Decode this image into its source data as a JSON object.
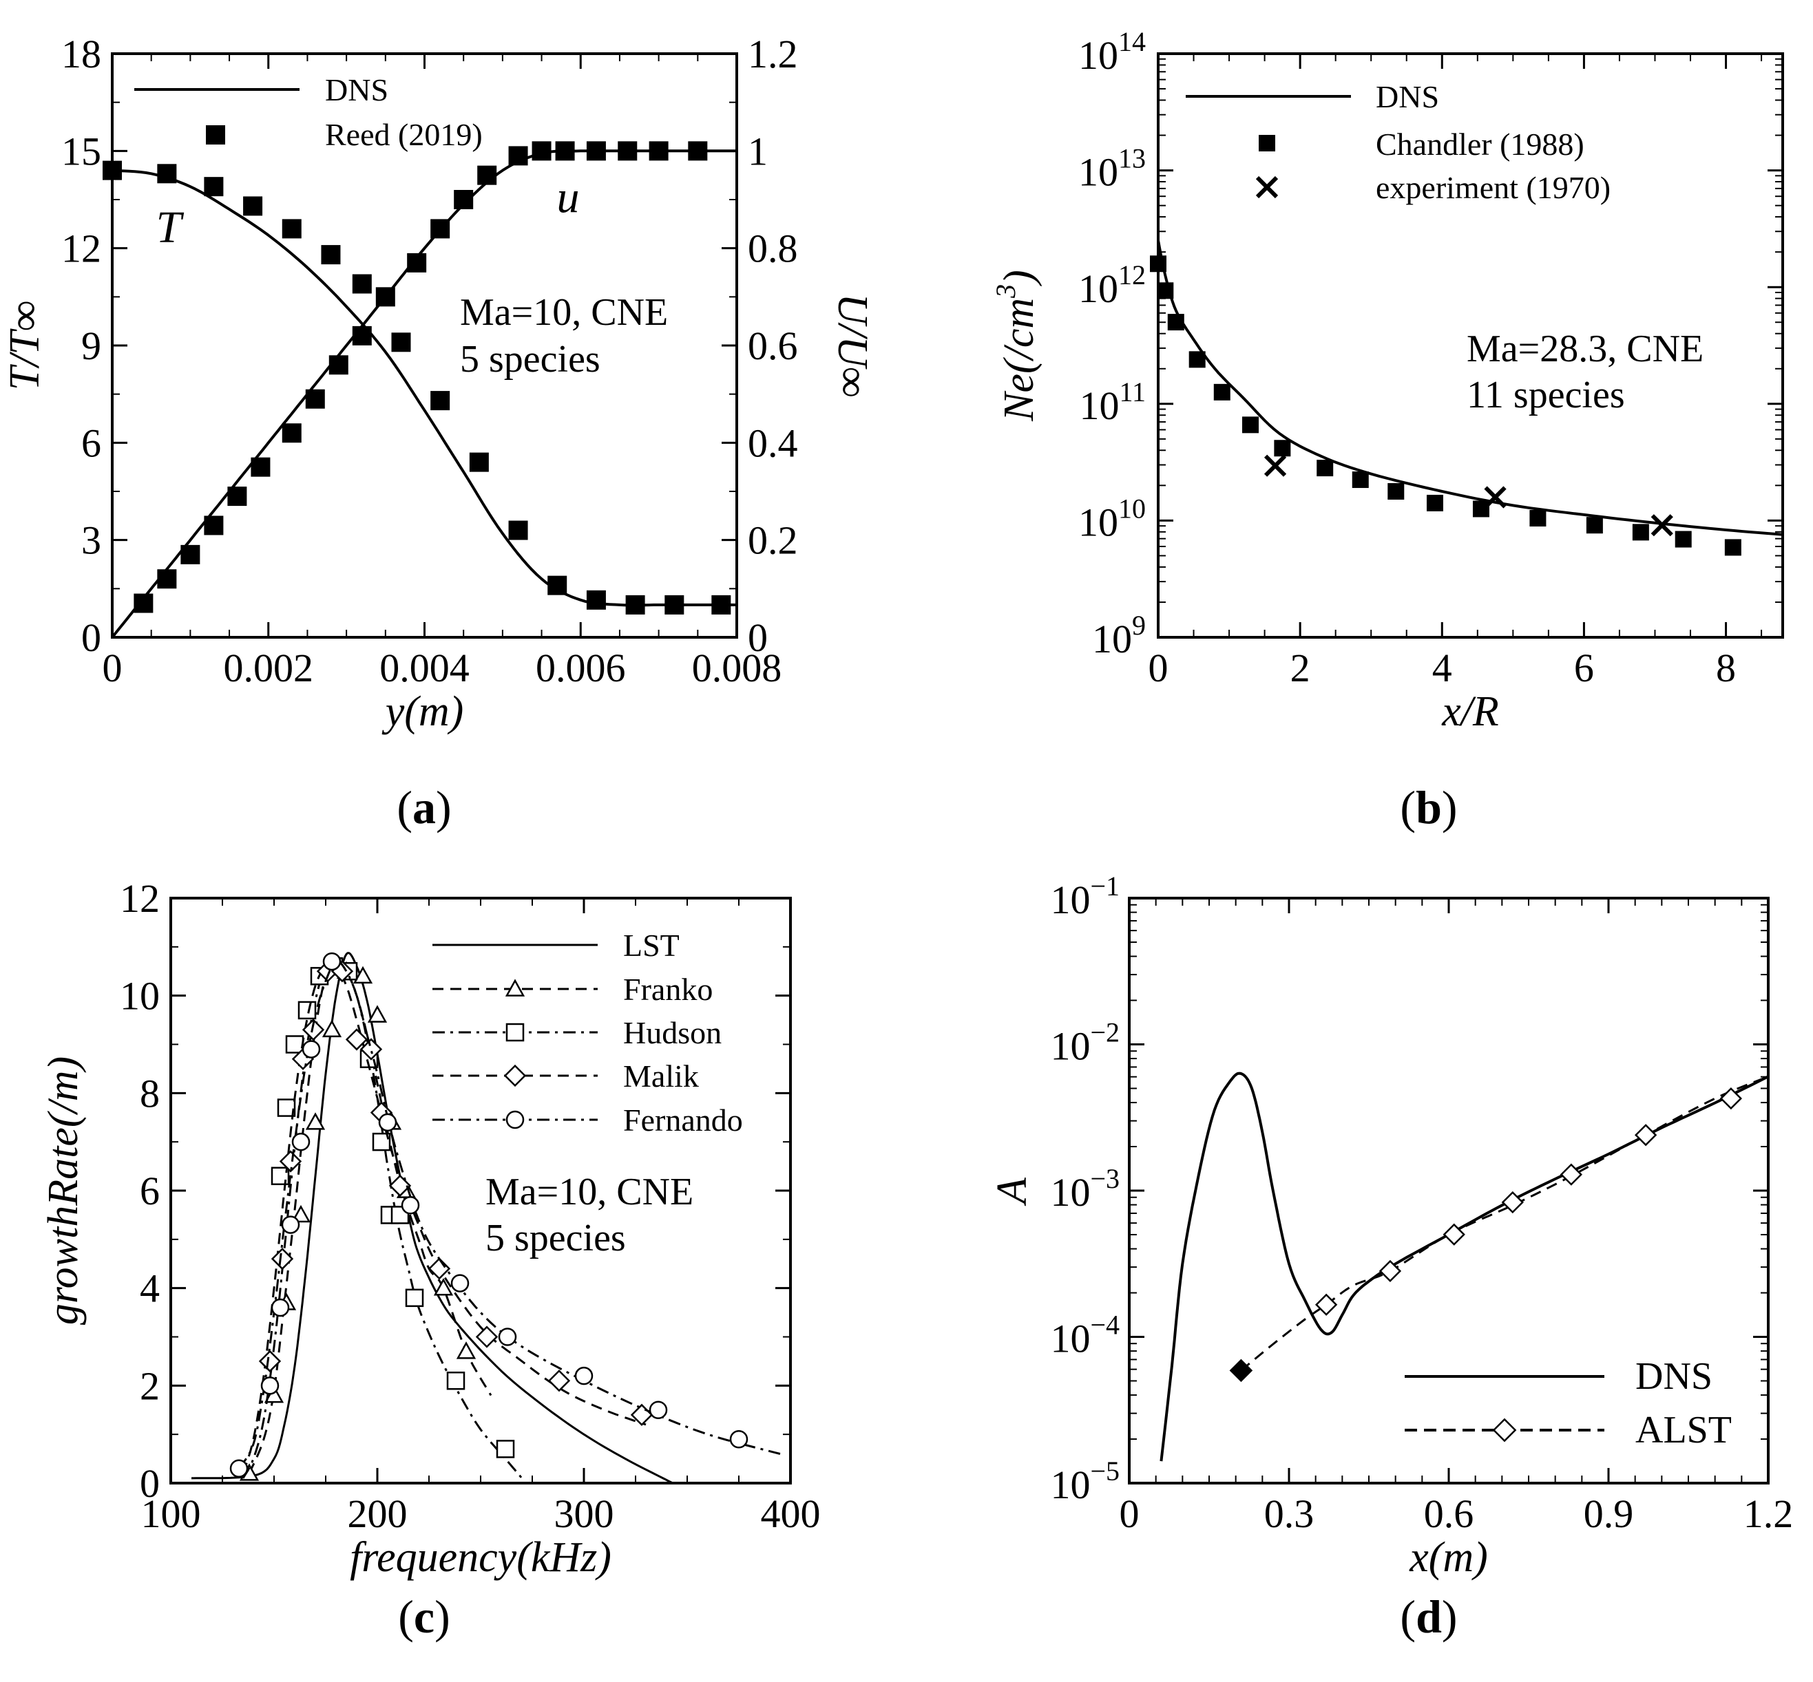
{
  "chart_data": [
    {
      "type": "line",
      "caption": "a",
      "xlabel": "y(m)",
      "ylabel": "T/T∞",
      "ylabel_right": "U/U∞",
      "xlim": [
        0,
        0.008
      ],
      "ylim": [
        0,
        18
      ],
      "ylim_right": [
        0,
        1.2
      ],
      "xticks": [
        "0",
        "0.002",
        "0.004",
        "0.006",
        "0.008"
      ],
      "yticks": [
        "0",
        "3",
        "6",
        "9",
        "12",
        "15",
        "18"
      ],
      "yticks_right": [
        "0",
        "0.2",
        "0.4",
        "0.6",
        "0.8",
        "1",
        "1.2"
      ],
      "legend": [
        "DNS",
        "Reed (2019)"
      ],
      "annotation": [
        "Ma=10, CNE",
        "5 species"
      ],
      "curve_labels": [
        "T",
        "u"
      ],
      "series": [
        {
          "name": "DNS T",
          "style": "line",
          "axis": "left",
          "x": [
            0,
            0.0005,
            0.001,
            0.0015,
            0.002,
            0.0025,
            0.003,
            0.0035,
            0.004,
            0.0045,
            0.005,
            0.0055,
            0.006,
            0.0065,
            0.007,
            0.0075,
            0.008
          ],
          "y": [
            14.4,
            14.3,
            13.9,
            13.2,
            12.4,
            11.4,
            10.2,
            8.8,
            7.0,
            5.1,
            3.2,
            1.8,
            1.15,
            1.0,
            1.0,
            1.0,
            1.0
          ]
        },
        {
          "name": "DNS u",
          "style": "line",
          "axis": "right",
          "x": [
            0,
            0.0005,
            0.001,
            0.0015,
            0.002,
            0.0025,
            0.003,
            0.0035,
            0.004,
            0.0045,
            0.005,
            0.0055,
            0.006,
            0.0065,
            0.007,
            0.0075,
            0.008
          ],
          "y": [
            0,
            0.1,
            0.2,
            0.3,
            0.4,
            0.5,
            0.6,
            0.7,
            0.8,
            0.89,
            0.96,
            0.995,
            1.0,
            1.0,
            1.0,
            1.0,
            1.0
          ]
        },
        {
          "name": "Reed (2019) T",
          "style": "square",
          "axis": "left",
          "x": [
            0.0,
            0.0007,
            0.0013,
            0.0018,
            0.0023,
            0.0028,
            0.0032,
            0.0037,
            0.0042,
            0.0047,
            0.0052,
            0.0057,
            0.0062,
            0.0067,
            0.0072,
            0.0078
          ],
          "y": [
            14.4,
            14.3,
            13.9,
            13.3,
            12.6,
            11.8,
            10.9,
            9.1,
            7.3,
            5.4,
            3.3,
            1.6,
            1.15,
            1.0,
            1.0,
            1.0
          ]
        },
        {
          "name": "Reed (2019) u",
          "style": "square",
          "axis": "right",
          "x": [
            0.0004,
            0.0007,
            0.001,
            0.0013,
            0.0016,
            0.0019,
            0.0023,
            0.0026,
            0.0029,
            0.0032,
            0.0035,
            0.0039,
            0.0042,
            0.0045,
            0.0048,
            0.0052,
            0.0055,
            0.0058,
            0.0062,
            0.0066,
            0.007,
            0.0075
          ],
          "y": [
            0.07,
            0.12,
            0.17,
            0.23,
            0.29,
            0.35,
            0.42,
            0.49,
            0.56,
            0.62,
            0.7,
            0.77,
            0.84,
            0.9,
            0.95,
            0.99,
            1.0,
            1.0,
            1.0,
            1.0,
            1.0,
            1.0
          ]
        }
      ]
    },
    {
      "type": "line",
      "caption": "b",
      "xlabel": "x/R",
      "ylabel": "Ne(/cm3)",
      "yscale": "log",
      "xlim": [
        0,
        8.8
      ],
      "ylim_exponents": [
        9,
        14
      ],
      "xticks": [
        "0",
        "2",
        "4",
        "6",
        "8"
      ],
      "ytick_base": "10",
      "yticks_exp": [
        "9",
        "10",
        "11",
        "12",
        "13",
        "14"
      ],
      "legend": [
        "DNS",
        "Chandler (1988)",
        "experiment (1970)"
      ],
      "annotation": [
        "Ma=28.3, CNE",
        "11 species"
      ],
      "series": [
        {
          "name": "DNS",
          "style": "line",
          "x": [
            0,
            0.1,
            0.25,
            0.5,
            0.8,
            1.2,
            1.7,
            2.3,
            3.0,
            4.0,
            5.0,
            6.0,
            7.0,
            8.0,
            8.8
          ],
          "log10_y": [
            12.4,
            12.1,
            11.8,
            11.55,
            11.3,
            11.05,
            10.75,
            10.55,
            10.4,
            10.25,
            10.13,
            10.05,
            9.98,
            9.92,
            9.88
          ]
        },
        {
          "name": "Chandler (1988)",
          "style": "square",
          "x": [
            0.0,
            0.1,
            0.25,
            0.55,
            0.9,
            1.3,
            1.75,
            2.35,
            2.85,
            3.35,
            3.9,
            4.55,
            5.35,
            6.15,
            6.8,
            7.4,
            8.1
          ],
          "log10_y": [
            12.2,
            11.97,
            11.7,
            11.38,
            11.1,
            10.82,
            10.62,
            10.45,
            10.35,
            10.25,
            10.15,
            10.1,
            10.02,
            9.96,
            9.9,
            9.84,
            9.77
          ]
        },
        {
          "name": "experiment (1970)",
          "style": "x",
          "x": [
            1.65,
            4.75,
            7.1
          ],
          "log10_y": [
            10.47,
            10.2,
            9.96
          ]
        }
      ]
    },
    {
      "type": "line",
      "caption": "c",
      "xlabel": "frequency(kHz)",
      "ylabel": "growthRate(/m)",
      "xlim": [
        100,
        400
      ],
      "ylim": [
        0,
        12
      ],
      "xticks": [
        "100",
        "200",
        "300",
        "400"
      ],
      "yticks": [
        "0",
        "2",
        "4",
        "6",
        "8",
        "10",
        "12"
      ],
      "legend": [
        "LST",
        "Franko",
        "Hudson",
        "Malik",
        "Fernando"
      ],
      "annotation": [
        "Ma=10, CNE",
        "5 species"
      ],
      "series": [
        {
          "name": "LST",
          "style": "solid",
          "x": [
            110,
            140,
            150,
            155,
            160,
            165,
            170,
            175,
            180,
            185,
            190,
            195,
            200,
            205,
            210,
            215,
            220,
            230,
            240,
            260,
            280,
            300,
            320,
            343
          ],
          "y": [
            0.1,
            0.15,
            0.5,
            1.2,
            2.4,
            4.2,
            6.3,
            8.4,
            10.0,
            10.85,
            10.6,
            9.9,
            8.8,
            7.6,
            6.5,
            5.5,
            4.7,
            3.8,
            3.2,
            2.3,
            1.6,
            1.0,
            0.5,
            0.0
          ]
        },
        {
          "name": "Franko",
          "style": "dash",
          "marker": "triangle",
          "x": [
            138,
            145,
            150,
            155,
            160,
            165,
            170,
            175,
            180,
            185,
            190,
            195,
            200,
            205,
            210,
            215,
            220,
            225,
            232,
            243,
            255
          ],
          "y": [
            0.2,
            0.9,
            1.9,
            3.7,
            5.6,
            7.6,
            9.3,
            10.4,
            10.65,
            10.5,
            10.0,
            9.2,
            8.2,
            7.2,
            6.3,
            5.6,
            5.0,
            4.4,
            4.0,
            2.7,
            1.8
          ],
          "marker_x": [
            138,
            150,
            156,
            163,
            170,
            178,
            185,
            193,
            200,
            207,
            214,
            232,
            243
          ],
          "marker_y": [
            0.2,
            1.8,
            3.7,
            5.5,
            7.4,
            9.3,
            10.5,
            10.4,
            9.6,
            7.4,
            6.0,
            4.0,
            2.7
          ]
        },
        {
          "name": "Hudson",
          "style": "dashdot",
          "marker": "square",
          "x": [
            135,
            140,
            145,
            150,
            155,
            160,
            165,
            170,
            175,
            180,
            185,
            190,
            195,
            200,
            205,
            210,
            215,
            220,
            230,
            240,
            250,
            262,
            270
          ],
          "y": [
            0.1,
            0.5,
            1.3,
            2.8,
            4.8,
            6.9,
            8.7,
            9.9,
            10.6,
            10.7,
            10.5,
            10.0,
            9.1,
            7.9,
            6.5,
            5.3,
            4.4,
            3.6,
            2.6,
            1.8,
            1.1,
            0.5,
            0.1
          ],
          "marker_x": [
            153,
            156,
            160,
            166,
            172,
            179,
            186,
            196,
            202,
            206,
            211,
            218,
            238,
            262
          ],
          "marker_y": [
            6.3,
            7.7,
            9.0,
            9.7,
            10.4,
            10.6,
            10.5,
            8.7,
            7.0,
            5.5,
            5.5,
            3.8,
            2.1,
            0.7
          ]
        },
        {
          "name": "Malik",
          "style": "dash",
          "marker": "diamond",
          "x": [
            135,
            140,
            145,
            150,
            155,
            160,
            165,
            170,
            175,
            180,
            185,
            190,
            195,
            200,
            205,
            210,
            220,
            230,
            250,
            270,
            290,
            310,
            330
          ],
          "y": [
            0.2,
            0.9,
            2.2,
            4.0,
            6.0,
            7.9,
            9.3,
            10.2,
            10.6,
            10.6,
            10.2,
            9.5,
            8.7,
            7.9,
            7.1,
            6.4,
            5.3,
            4.4,
            3.2,
            2.5,
            1.9,
            1.5,
            1.2
          ],
          "marker_x": [
            148,
            154,
            158,
            164,
            169,
            176,
            183,
            190,
            197,
            202,
            211,
            230,
            253,
            288,
            328
          ],
          "marker_y": [
            2.5,
            4.6,
            6.6,
            8.7,
            9.3,
            10.5,
            10.5,
            9.1,
            8.9,
            7.6,
            6.1,
            4.4,
            3.0,
            2.1,
            1.4
          ]
        },
        {
          "name": "Fernando",
          "style": "dashdot",
          "marker": "circle",
          "x": [
            133,
            140,
            145,
            150,
            155,
            160,
            165,
            170,
            175,
            180,
            185,
            190,
            195,
            200,
            205,
            210,
            220,
            230,
            250,
            270,
            300,
            330,
            360,
            395
          ],
          "y": [
            0.3,
            0.8,
            1.9,
            3.5,
            5.3,
            7.0,
            8.5,
            9.6,
            10.3,
            10.7,
            10.5,
            10.0,
            9.2,
            8.4,
            7.5,
            6.7,
            5.4,
            4.6,
            3.5,
            2.8,
            2.1,
            1.5,
            1.0,
            0.6
          ],
          "marker_x": [
            133,
            148,
            153,
            158,
            163,
            168,
            178,
            205,
            216,
            240,
            263,
            300,
            336,
            375
          ],
          "marker_y": [
            0.3,
            2.0,
            3.6,
            5.3,
            7.0,
            8.9,
            10.7,
            7.4,
            5.7,
            4.1,
            3.0,
            2.2,
            1.5,
            0.9
          ]
        }
      ]
    },
    {
      "type": "line",
      "caption": "d",
      "xlabel": "x(m)",
      "ylabel": "A",
      "yscale": "log",
      "xlim": [
        0,
        1.2
      ],
      "ylim_exponents": [
        -5,
        -1
      ],
      "xticks": [
        "0",
        "0.3",
        "0.6",
        "0.9",
        "1.2"
      ],
      "ytick_base": "10",
      "yticks_exp": [
        "-5",
        "-4",
        "-3",
        "-2",
        "-1"
      ],
      "legend": [
        "DNS",
        "ALST"
      ],
      "series": [
        {
          "name": "DNS",
          "style": "solid",
          "x": [
            0.06,
            0.08,
            0.1,
            0.13,
            0.16,
            0.19,
            0.21,
            0.23,
            0.25,
            0.27,
            0.3,
            0.33,
            0.36,
            0.38,
            0.4,
            0.42,
            0.45,
            0.5,
            0.6,
            0.7,
            0.8,
            0.9,
            1.0,
            1.1,
            1.2
          ],
          "log10_y": [
            -4.85,
            -4.2,
            -3.5,
            -2.9,
            -2.45,
            -2.25,
            -2.2,
            -2.3,
            -2.6,
            -3.0,
            -3.5,
            -3.75,
            -3.95,
            -3.97,
            -3.85,
            -3.72,
            -3.62,
            -3.5,
            -3.3,
            -3.1,
            -2.92,
            -2.75,
            -2.57,
            -2.4,
            -2.22
          ]
        },
        {
          "name": "ALST",
          "style": "dash",
          "marker": "diamond",
          "x": [
            0.21,
            0.27,
            0.33,
            0.37,
            0.42,
            0.49,
            0.6,
            0.72,
            0.83,
            0.97,
            1.1,
            1.2
          ],
          "log10_y": [
            -4.23,
            -4.05,
            -3.88,
            -3.78,
            -3.65,
            -3.55,
            -3.3,
            -3.1,
            -2.9,
            -2.62,
            -2.37,
            -2.22
          ],
          "marker_x": [
            0.37,
            0.49,
            0.61,
            0.72,
            0.83,
            0.97,
            1.13
          ],
          "marker_log10_y": [
            -3.78,
            -3.55,
            -3.3,
            -3.08,
            -2.89,
            -2.62,
            -2.37
          ]
        },
        {
          "name": "start point",
          "style": "filled-diamond",
          "legend": false,
          "x": [
            0.21
          ],
          "log10_y": [
            -4.23
          ]
        }
      ]
    }
  ]
}
